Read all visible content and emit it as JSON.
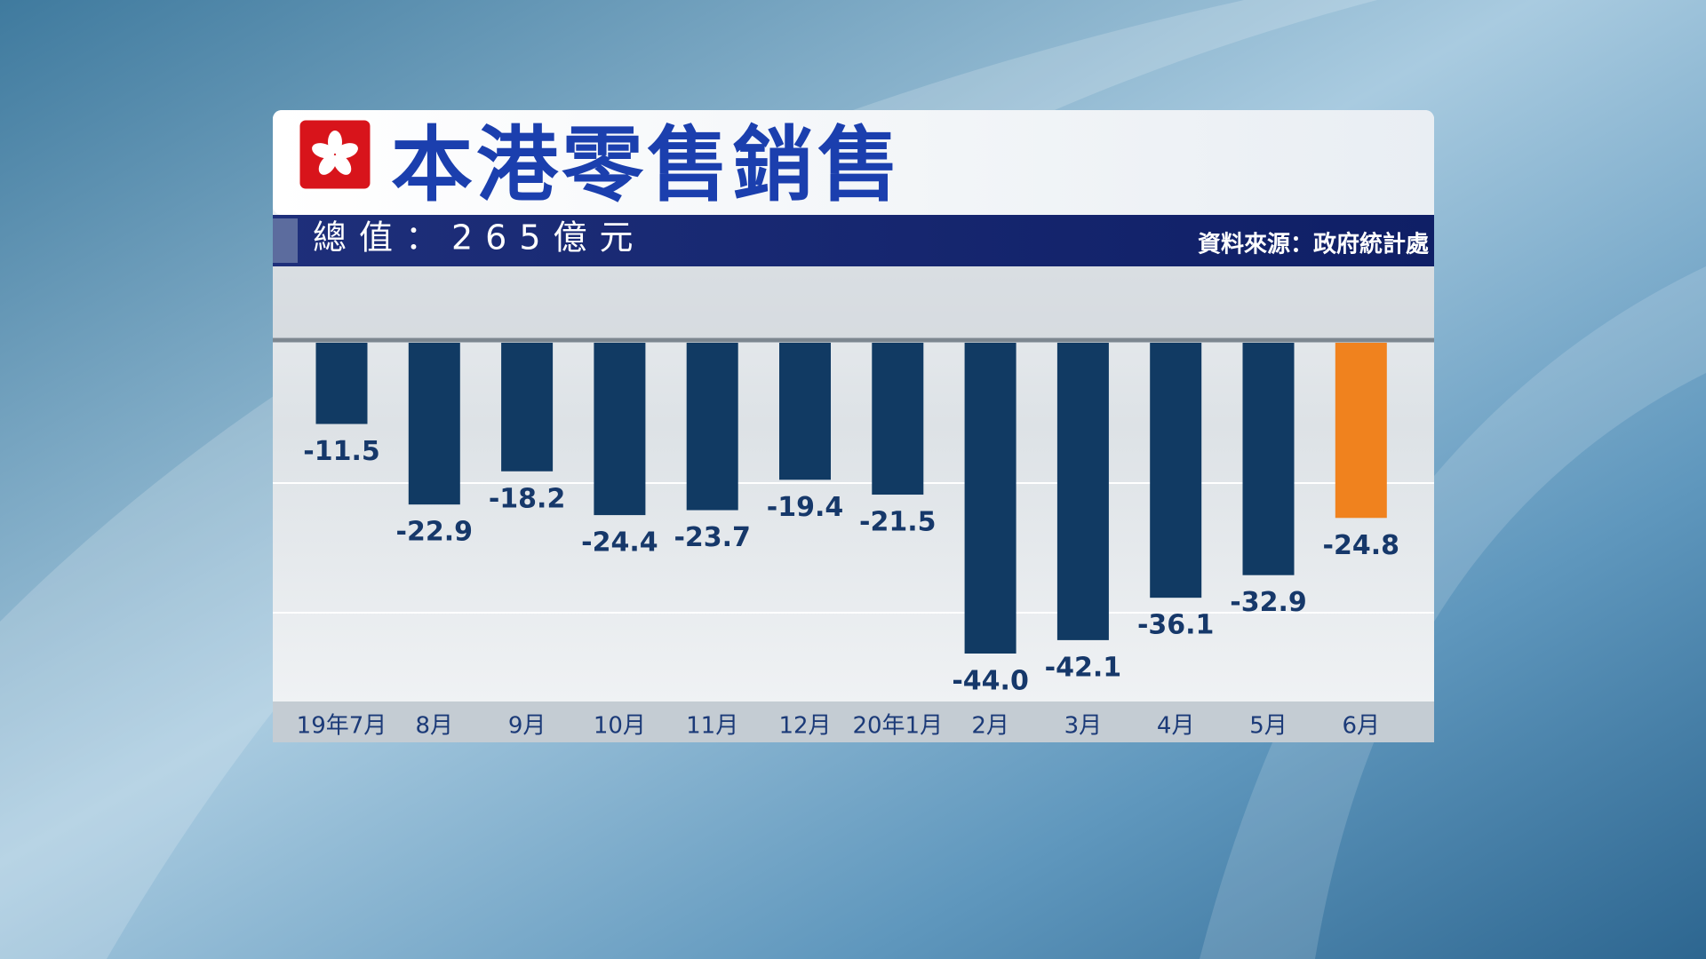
{
  "chart_data": {
    "type": "bar",
    "title": "本港零售銷售",
    "subtitle": "總值：265億元",
    "source": "資料來源：政府統計處",
    "categories": [
      "19年7月",
      "8月",
      "9月",
      "10月",
      "11月",
      "12月",
      "20年1月",
      "2月",
      "3月",
      "4月",
      "5月",
      "6月"
    ],
    "values": [
      -11.5,
      -22.9,
      -18.2,
      -24.4,
      -23.7,
      -19.4,
      -21.5,
      -44.0,
      -42.1,
      -36.1,
      -32.9,
      -24.8
    ],
    "value_labels": [
      "-11.5",
      "-22.9",
      "-18.2",
      "-24.4",
      "-23.7",
      "-19.4",
      "-21.5",
      "-44.0",
      "-42.1",
      "-36.1",
      "-32.9",
      "-24.8"
    ],
    "colors": [
      "#113a63",
      "#113a63",
      "#113a63",
      "#113a63",
      "#113a63",
      "#113a63",
      "#113a63",
      "#113a63",
      "#113a63",
      "#113a63",
      "#113a63",
      "#f0821e"
    ]
  }
}
